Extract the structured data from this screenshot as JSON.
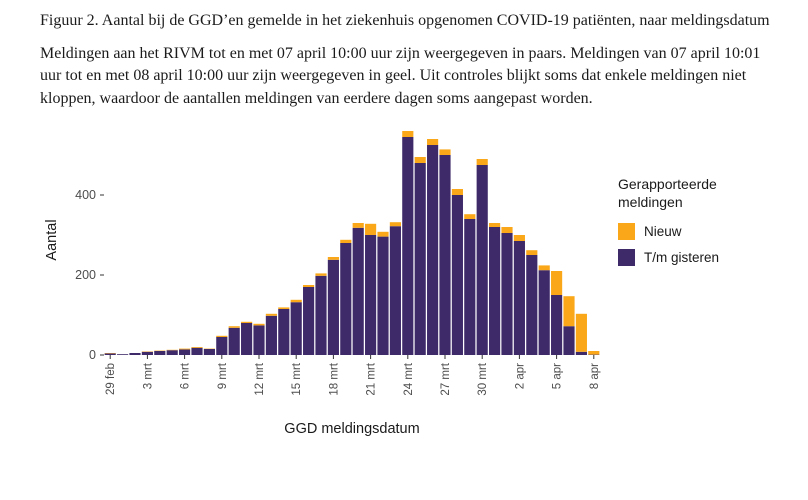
{
  "figure": {
    "title": "Figuur 2. Aantal bij de GGD’en gemelde in het ziekenhuis opgenomen COVID-19 patiënten, naar meldingsdatum",
    "description": "Meldingen aan het RIVM tot en met 07 april 10:00 uur zijn weergegeven in paars. Meldingen van 07 april 10:01 uur tot en met 08 april 10:00 uur zijn weergegeven in geel. Uit controles blijkt soms dat enkele meldingen niet kloppen, waardoor de aantallen meldingen van eerdere dagen soms aangepast worden."
  },
  "chart_data": {
    "type": "bar",
    "stacked": true,
    "title": "",
    "xlabel": "GGD meldingsdatum",
    "ylabel": "Aantal",
    "ylim": [
      0,
      575
    ],
    "yticks": [
      0,
      200,
      400
    ],
    "xtick_every": 3,
    "grid": false,
    "legend_position": "right",
    "categories": [
      "29 feb",
      "1 mrt",
      "2 mrt",
      "3 mrt",
      "4 mrt",
      "5 mrt",
      "6 mrt",
      "7 mrt",
      "8 mrt",
      "9 mrt",
      "10 mrt",
      "11 mrt",
      "12 mrt",
      "13 mrt",
      "14 mrt",
      "15 mrt",
      "16 mrt",
      "17 mrt",
      "18 mrt",
      "19 mrt",
      "20 mrt",
      "21 mrt",
      "22 mrt",
      "23 mrt",
      "24 mrt",
      "25 mrt",
      "26 mrt",
      "27 mrt",
      "28 mrt",
      "29 mrt",
      "30 mrt",
      "31 mrt",
      "1 apr",
      "2 apr",
      "3 apr",
      "4 apr",
      "5 apr",
      "6 apr",
      "7 apr",
      "8 apr"
    ],
    "series": [
      {
        "name": "T/m gisteren",
        "color": "#3f2a69",
        "values": [
          4,
          2,
          5,
          8,
          10,
          12,
          14,
          18,
          15,
          45,
          68,
          80,
          74,
          98,
          115,
          132,
          170,
          198,
          238,
          280,
          318,
          300,
          296,
          322,
          545,
          480,
          525,
          500,
          400,
          340,
          475,
          320,
          305,
          285,
          250,
          212,
          150,
          72,
          8,
          1
        ]
      },
      {
        "name": "Nieuw",
        "color": "#faa819",
        "values": [
          1,
          0,
          0,
          1,
          1,
          1,
          2,
          2,
          1,
          3,
          4,
          3,
          4,
          5,
          4,
          6,
          5,
          6,
          7,
          8,
          12,
          28,
          12,
          10,
          15,
          15,
          15,
          14,
          15,
          12,
          15,
          10,
          15,
          15,
          12,
          12,
          60,
          75,
          95,
          9
        ]
      }
    ],
    "legend": {
      "title": "Gerapporteerde meldingen",
      "entries": [
        {
          "label": "Nieuw",
          "color": "#faa819"
        },
        {
          "label": "T/m gisteren",
          "color": "#3f2a69"
        }
      ]
    }
  }
}
